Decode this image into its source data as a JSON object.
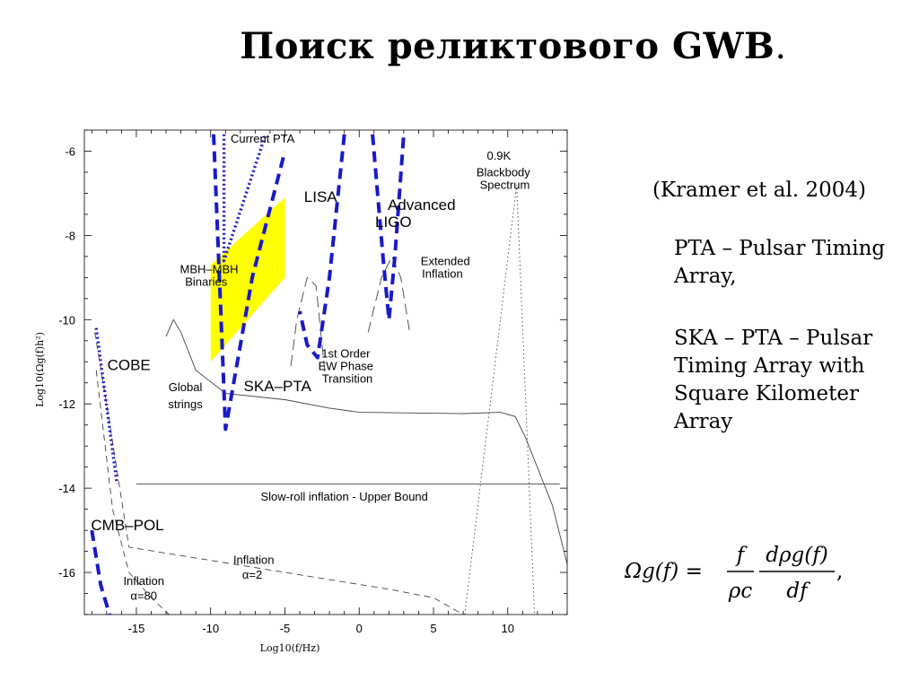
{
  "title": {
    "main": "Поиск реликтового GWB",
    "dot": "."
  },
  "notes": {
    "citation": "(Kramer et al. 2004)",
    "pta": "PTA – Pulsar Timing Array,",
    "ska": "SKA – PTA – Pulsar Timing Array with Square Kilometer Array"
  },
  "formula": {
    "lhs": "Ωg(f) =",
    "numerator_1": "f",
    "denominator_1": "ρc",
    "numerator_2": "dρg(f)",
    "denominator_2": "df",
    "tail": ","
  },
  "chart_data": {
    "type": "line",
    "xlabel": "Log10(f/Hz)",
    "ylabel": "Log10(Ωg(f)h²)",
    "xlim": [
      -18.5,
      14
    ],
    "ylim": [
      -17,
      -5.5
    ],
    "x_ticks": [
      -15,
      -10,
      -5,
      0,
      5,
      10
    ],
    "y_ticks": [
      -16,
      -14,
      -12,
      -10,
      -8,
      -6
    ],
    "grid": false,
    "colors": {
      "sensitivity": "#1a1ac8",
      "region": "#ffff00",
      "theory": "#444444"
    },
    "sensitivity_curves": [
      {
        "label": "COBE",
        "style": "dotted",
        "points": [
          [
            -17.7,
            -10.2
          ],
          [
            -16.3,
            -13.9
          ]
        ]
      },
      {
        "label": "CMB–POL",
        "style": "dashed",
        "points": [
          [
            -18.0,
            -15.0
          ],
          [
            -17.4,
            -16.3
          ],
          [
            -16.8,
            -17.0
          ]
        ]
      },
      {
        "label": "Current PTA",
        "style": "dotted",
        "points": [
          [
            -9.1,
            -5.6
          ],
          [
            -9.1,
            -8.6
          ],
          [
            -6.3,
            -5.6
          ]
        ]
      },
      {
        "label": "SKA–PTA",
        "style": "dashed",
        "points": [
          [
            -9.8,
            -5.6
          ],
          [
            -9.0,
            -12.6
          ],
          [
            -7.2,
            -9.0
          ],
          [
            -5.0,
            -6.0
          ]
        ]
      },
      {
        "label": "LISA",
        "style": "dashed",
        "points": [
          [
            -1.0,
            -5.6
          ],
          [
            -2.0,
            -9.0
          ],
          [
            -2.8,
            -10.9
          ],
          [
            -3.5,
            -10.6
          ],
          [
            -4.0,
            -9.8
          ]
        ]
      },
      {
        "label": "Advanced LIGO",
        "style": "dashed",
        "points": [
          [
            0.9,
            -5.6
          ],
          [
            1.6,
            -8.5
          ],
          [
            2.0,
            -10.0
          ],
          [
            2.4,
            -8.5
          ],
          [
            3.0,
            -5.6
          ]
        ]
      }
    ],
    "regions": [
      {
        "label": "MBH–MBH Binaries",
        "points": [
          [
            -10.0,
            -8.7
          ],
          [
            -5.0,
            -7.1
          ],
          [
            -5.0,
            -9.0
          ],
          [
            -10.0,
            -11.0
          ]
        ]
      }
    ],
    "theory_curves": [
      {
        "label": "Global strings",
        "style": "solid",
        "points": [
          [
            -13.0,
            -10.4
          ],
          [
            -12.5,
            -10.0
          ],
          [
            -12.0,
            -10.3
          ],
          [
            -11.0,
            -11.2
          ],
          [
            -9.0,
            -11.75
          ],
          [
            -5.0,
            -11.9
          ],
          [
            -2.0,
            -12.1
          ],
          [
            0.0,
            -12.2
          ],
          [
            7.0,
            -12.23
          ],
          [
            9.5,
            -12.2
          ],
          [
            10.5,
            -12.3
          ],
          [
            11.2,
            -12.8
          ],
          [
            13.0,
            -14.4
          ],
          [
            14.0,
            -15.8
          ]
        ]
      },
      {
        "label": "Slow-roll inflation - Upper Bound",
        "style": "solid",
        "points": [
          [
            -15.0,
            -13.9
          ],
          [
            13.5,
            -13.9
          ]
        ]
      },
      {
        "label": "Inflation α=2",
        "style": "dashed",
        "points": [
          [
            -17.8,
            -10.3
          ],
          [
            -17.0,
            -12.0
          ],
          [
            -15.5,
            -15.4
          ],
          [
            -12.0,
            -15.6
          ],
          [
            -5.0,
            -16.0
          ],
          [
            2.0,
            -16.4
          ],
          [
            5.0,
            -16.6
          ],
          [
            7.0,
            -17.0
          ]
        ]
      },
      {
        "label": "Inflation α=80",
        "style": "dashed",
        "points": [
          [
            -17.7,
            -11.2
          ],
          [
            -16.6,
            -14.5
          ],
          [
            -15.5,
            -16.0
          ],
          [
            -14.0,
            -16.6
          ],
          [
            -12.8,
            -17.0
          ]
        ]
      },
      {
        "label": "1st Order EW Phase Transition",
        "style": "longdash",
        "points": [
          [
            -4.6,
            -11.1
          ],
          [
            -4.2,
            -10.0
          ],
          [
            -3.5,
            -9.0
          ],
          [
            -2.9,
            -9.2
          ],
          [
            -2.3,
            -11.3
          ]
        ]
      },
      {
        "label": "Extended Inflation",
        "style": "longdash",
        "points": [
          [
            0.6,
            -10.3
          ],
          [
            1.5,
            -9.0
          ],
          [
            2.2,
            -8.5
          ],
          [
            2.8,
            -9.0
          ],
          [
            3.4,
            -10.3
          ]
        ]
      },
      {
        "label": "0.9K Blackbody Spectrum",
        "style": "dotted",
        "points": [
          [
            7.1,
            -17.0
          ],
          [
            10.6,
            -6.8
          ],
          [
            11.8,
            -17.0
          ]
        ]
      }
    ],
    "annotations": [
      {
        "text": "Current PTA",
        "x": -6.5,
        "y": -5.8
      },
      {
        "text": "LISA",
        "x": -2.6,
        "y": -7.2
      },
      {
        "text": "Advanced",
        "x": 4.2,
        "y": -7.4
      },
      {
        "text": "LIGO",
        "x": 2.3,
        "y": -7.8
      },
      {
        "text": "0.9K",
        "x": 9.4,
        "y": -6.2
      },
      {
        "text": "Blackbody",
        "x": 9.7,
        "y": -6.6
      },
      {
        "text": "Spectrum",
        "x": 9.8,
        "y": -6.9
      },
      {
        "text": "Extended",
        "x": 5.8,
        "y": -8.7
      },
      {
        "text": "Inflation",
        "x": 5.6,
        "y": -9.0
      },
      {
        "text": "MBH–MBH",
        "x": -10.1,
        "y": -8.9
      },
      {
        "text": "Binaries",
        "x": -10.3,
        "y": -9.2
      },
      {
        "text": "1st Order",
        "x": -0.9,
        "y": -10.9
      },
      {
        "text": "EW Phase",
        "x": -0.9,
        "y": -11.2
      },
      {
        "text": "Transition",
        "x": -0.8,
        "y": -11.5
      },
      {
        "text": "COBE",
        "x": -15.5,
        "y": -11.2
      },
      {
        "text": "SKA–PTA",
        "x": -5.5,
        "y": -11.7
      },
      {
        "text": "Global",
        "x": -11.7,
        "y": -11.7
      },
      {
        "text": "strings",
        "x": -11.7,
        "y": -12.1
      },
      {
        "text": "Slow-roll inflation - Upper Bound",
        "x": -1.0,
        "y": -14.3
      },
      {
        "text": "CMB–POL",
        "x": -15.6,
        "y": -15.0
      },
      {
        "text": "Inflation",
        "x": -7.1,
        "y": -15.8
      },
      {
        "text": "α=2",
        "x": -7.2,
        "y": -16.15
      },
      {
        "text": "Inflation",
        "x": -14.5,
        "y": -16.3
      },
      {
        "text": "α=80",
        "x": -14.5,
        "y": -16.65
      }
    ]
  }
}
